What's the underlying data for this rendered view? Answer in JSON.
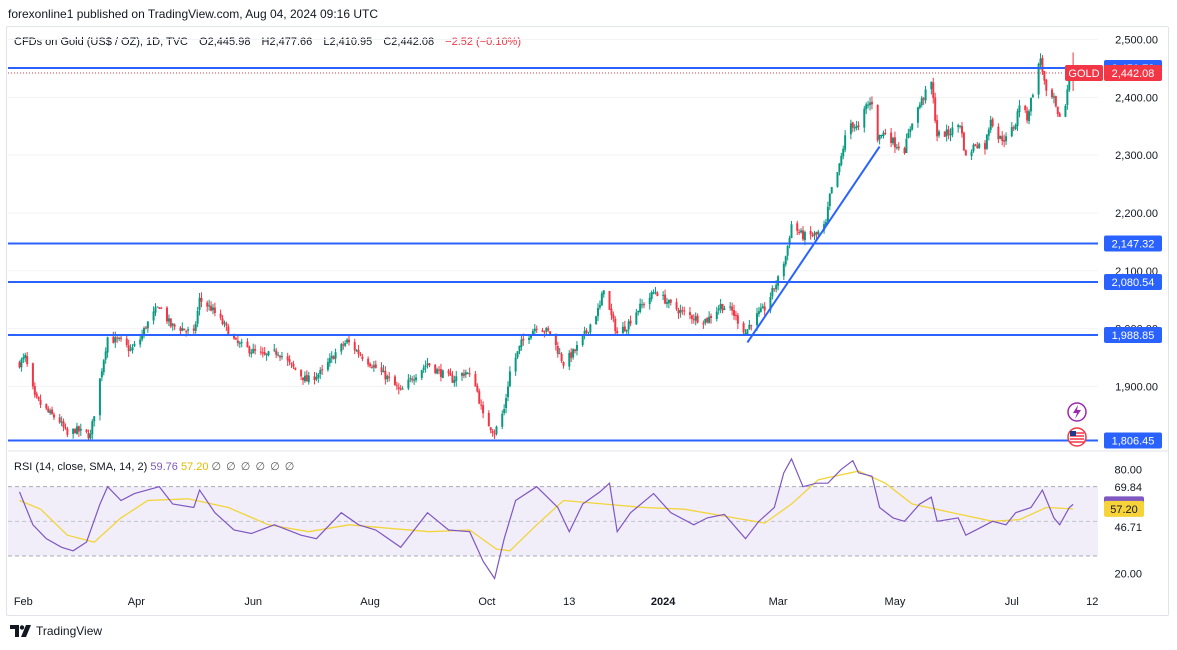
{
  "header": {
    "publisher": "forexonline1 published on TradingView.com, Aug 04, 2024 09:16 UTC",
    "symbol": "CFDs on Gold (US$ / OZ), 1D, TVC",
    "open": "O2,445.98",
    "high": "H2,477.66",
    "low": "L2,410.95",
    "close": "C2,442.08",
    "change": "−2.52 (−0.10%)"
  },
  "rsi_header": {
    "label": "RSI (14, close, SMA, 14, 2)",
    "rsi_value": "59.76",
    "sma_value": "57.20",
    "nulls": "∅ ∅ ∅ ∅ ∅ ∅"
  },
  "footer": {
    "brand": "TradingView"
  },
  "colors": {
    "up": "#089981",
    "down": "#f23645",
    "level": "#2962ff",
    "rsi_line": "#7e57c2",
    "rsi_sma": "#f2d43a",
    "rsi_band": "#ede7f6"
  },
  "chart_data": [
    {
      "type": "candlestick",
      "title": "CFDs on Gold (US$ / OZ), 1D, TVC",
      "ylim": [
        1790,
        2520
      ],
      "y_ticks": [
        "2,500.00",
        "2,400.00",
        "2,300.00",
        "2,200.00",
        "2,100.00",
        "2,000.00",
        "1,900.00"
      ],
      "x_ticks": [
        "Feb",
        "Apr",
        "Jun",
        "Aug",
        "Oct",
        "13",
        "2024",
        "Mar",
        "May",
        "Jul",
        "12"
      ],
      "close_path": [
        [
          "2023-01-30",
          1940
        ],
        [
          "2023-02-02",
          1950
        ],
        [
          "2023-02-07",
          1880
        ],
        [
          "2023-02-14",
          1855
        ],
        [
          "2023-02-20",
          1840
        ],
        [
          "2023-02-24",
          1815
        ],
        [
          "2023-02-28",
          1825
        ],
        [
          "2023-03-08",
          1815
        ],
        [
          "2023-03-13",
          1912
        ],
        [
          "2023-03-17",
          1985
        ],
        [
          "2023-03-20",
          1980
        ],
        [
          "2023-03-24",
          1978
        ],
        [
          "2023-03-29",
          1962
        ],
        [
          "2023-04-03",
          1982
        ],
        [
          "2023-04-06",
          2005
        ],
        [
          "2023-04-13",
          2040
        ],
        [
          "2023-04-19",
          2005
        ],
        [
          "2023-04-25",
          2000
        ],
        [
          "2023-05-01",
          1990
        ],
        [
          "2023-05-04",
          2050
        ],
        [
          "2023-05-10",
          2035
        ],
        [
          "2023-05-17",
          2005
        ],
        [
          "2023-05-23",
          1975
        ],
        [
          "2023-05-31",
          1962
        ],
        [
          "2023-06-07",
          1952
        ],
        [
          "2023-06-14",
          1960
        ],
        [
          "2023-06-21",
          1935
        ],
        [
          "2023-06-29",
          1910
        ],
        [
          "2023-07-07",
          1925
        ],
        [
          "2023-07-14",
          1958
        ],
        [
          "2023-07-20",
          1978
        ],
        [
          "2023-07-27",
          1955
        ],
        [
          "2023-08-03",
          1935
        ],
        [
          "2023-08-10",
          1915
        ],
        [
          "2023-08-17",
          1890
        ],
        [
          "2023-08-23",
          1915
        ],
        [
          "2023-08-31",
          1940
        ],
        [
          "2023-09-06",
          1925
        ],
        [
          "2023-09-13",
          1912
        ],
        [
          "2023-09-20",
          1925
        ],
        [
          "2023-09-25",
          1905
        ],
        [
          "2023-09-29",
          1848
        ],
        [
          "2023-10-05",
          1820
        ],
        [
          "2023-10-10",
          1860
        ],
        [
          "2023-10-13",
          1925
        ],
        [
          "2023-10-19",
          1975
        ],
        [
          "2023-10-27",
          2005
        ],
        [
          "2023-11-03",
          1992
        ],
        [
          "2023-11-10",
          1940
        ],
        [
          "2023-11-16",
          1962
        ],
        [
          "2023-11-22",
          1995
        ],
        [
          "2023-11-29",
          2038
        ],
        [
          "2023-12-01",
          2072
        ],
        [
          "2023-12-04",
          2030
        ],
        [
          "2023-12-08",
          1992
        ],
        [
          "2023-12-13",
          2005
        ],
        [
          "2023-12-18",
          2030
        ],
        [
          "2023-12-28",
          2065
        ],
        [
          "2024-01-05",
          2040
        ],
        [
          "2024-01-11",
          2028
        ],
        [
          "2024-01-18",
          2018
        ],
        [
          "2024-01-24",
          2015
        ],
        [
          "2024-01-31",
          2040
        ],
        [
          "2024-02-06",
          2030
        ],
        [
          "2024-02-13",
          1993
        ],
        [
          "2024-02-16",
          2012
        ],
        [
          "2024-02-23",
          2035
        ],
        [
          "2024-03-01",
          2085
        ],
        [
          "2024-03-05",
          2125
        ],
        [
          "2024-03-08",
          2180
        ],
        [
          "2024-03-14",
          2160
        ],
        [
          "2024-03-21",
          2162
        ],
        [
          "2024-03-26",
          2180
        ],
        [
          "2024-03-28",
          2230
        ],
        [
          "2024-04-02",
          2280
        ],
        [
          "2024-04-05",
          2330
        ],
        [
          "2024-04-08",
          2355
        ],
        [
          "2024-04-12",
          2345
        ],
        [
          "2024-04-16",
          2385
        ],
        [
          "2024-04-19",
          2392
        ],
        [
          "2024-04-22",
          2330
        ],
        [
          "2024-04-26",
          2340
        ],
        [
          "2024-05-01",
          2320
        ],
        [
          "2024-05-06",
          2310
        ],
        [
          "2024-05-10",
          2360
        ],
        [
          "2024-05-15",
          2395
        ],
        [
          "2024-05-20",
          2425
        ],
        [
          "2024-05-23",
          2335
        ],
        [
          "2024-05-29",
          2338
        ],
        [
          "2024-06-04",
          2355
        ],
        [
          "2024-06-07",
          2295
        ],
        [
          "2024-06-12",
          2320
        ],
        [
          "2024-06-17",
          2315
        ],
        [
          "2024-06-20",
          2365
        ],
        [
          "2024-06-24",
          2330
        ],
        [
          "2024-06-28",
          2328
        ],
        [
          "2024-07-03",
          2355
        ],
        [
          "2024-07-05",
          2390
        ],
        [
          "2024-07-09",
          2365
        ],
        [
          "2024-07-12",
          2410
        ],
        [
          "2024-07-16",
          2468
        ],
        [
          "2024-07-19",
          2405
        ],
        [
          "2024-07-23",
          2395
        ],
        [
          "2024-07-25",
          2365
        ],
        [
          "2024-07-29",
          2385
        ],
        [
          "2024-07-31",
          2445
        ],
        [
          "2024-08-02",
          2442
        ]
      ],
      "levels": [
        {
          "price": 2450.73,
          "label": "2,450.73"
        },
        {
          "price": 2147.32,
          "label": "2,147.32"
        },
        {
          "price": 2080.54,
          "label": "2,080.54"
        },
        {
          "price": 1988.85,
          "label": "1,988.85"
        },
        {
          "price": 1806.45,
          "label": "1,806.45"
        }
      ],
      "trendline": [
        [
          "2024-02-14",
          1976
        ],
        [
          "2024-04-23",
          2315
        ]
      ],
      "current_price": {
        "symbol": "GOLD",
        "price": 2442.08,
        "label": "2,442.08"
      }
    },
    {
      "type": "line",
      "title": "RSI (14, close, SMA, 14, 2)",
      "ylim": [
        15,
        90
      ],
      "y_ticks": [
        "80.00",
        "20.00"
      ],
      "upper_band": 70,
      "lower_band": 30,
      "middle": 50,
      "series": [
        {
          "name": "RSI",
          "points": [
            [
              "2023-01-30",
              67
            ],
            [
              "2023-02-06",
              48
            ],
            [
              "2023-02-13",
              40
            ],
            [
              "2023-02-21",
              35
            ],
            [
              "2023-02-27",
              33
            ],
            [
              "2023-03-06",
              38
            ],
            [
              "2023-03-13",
              60
            ],
            [
              "2023-03-17",
              70
            ],
            [
              "2023-03-24",
              62
            ],
            [
              "2023-03-31",
              66
            ],
            [
              "2023-04-13",
              70
            ],
            [
              "2023-04-20",
              60
            ],
            [
              "2023-05-01",
              58
            ],
            [
              "2023-05-04",
              68
            ],
            [
              "2023-05-12",
              55
            ],
            [
              "2023-05-22",
              45
            ],
            [
              "2023-05-31",
              43
            ],
            [
              "2023-06-12",
              48
            ],
            [
              "2023-06-26",
              42
            ],
            [
              "2023-07-04",
              40
            ],
            [
              "2023-07-17",
              55
            ],
            [
              "2023-07-26",
              48
            ],
            [
              "2023-08-04",
              45
            ],
            [
              "2023-08-17",
              35
            ],
            [
              "2023-08-31",
              55
            ],
            [
              "2023-09-11",
              45
            ],
            [
              "2023-09-22",
              44
            ],
            [
              "2023-09-29",
              27
            ],
            [
              "2023-10-05",
              17
            ],
            [
              "2023-10-10",
              40
            ],
            [
              "2023-10-16",
              62
            ],
            [
              "2023-10-27",
              70
            ],
            [
              "2023-11-07",
              58
            ],
            [
              "2023-11-13",
              44
            ],
            [
              "2023-11-20",
              60
            ],
            [
              "2023-11-29",
              67
            ],
            [
              "2023-12-04",
              72
            ],
            [
              "2023-12-08",
              44
            ],
            [
              "2023-12-15",
              55
            ],
            [
              "2023-12-27",
              66
            ],
            [
              "2024-01-05",
              55
            ],
            [
              "2024-01-17",
              48
            ],
            [
              "2024-01-24",
              52
            ],
            [
              "2024-02-02",
              54
            ],
            [
              "2024-02-13",
              40
            ],
            [
              "2024-02-20",
              50
            ],
            [
              "2024-02-28",
              58
            ],
            [
              "2024-03-04",
              78
            ],
            [
              "2024-03-08",
              86
            ],
            [
              "2024-03-14",
              70
            ],
            [
              "2024-03-21",
              72
            ],
            [
              "2024-03-27",
              72
            ],
            [
              "2024-04-03",
              80
            ],
            [
              "2024-04-09",
              85
            ],
            [
              "2024-04-12",
              78
            ],
            [
              "2024-04-19",
              76
            ],
            [
              "2024-04-23",
              58
            ],
            [
              "2024-04-30",
              52
            ],
            [
              "2024-05-06",
              50
            ],
            [
              "2024-05-14",
              60
            ],
            [
              "2024-05-20",
              64
            ],
            [
              "2024-05-23",
              50
            ],
            [
              "2024-06-03",
              52
            ],
            [
              "2024-06-07",
              42
            ],
            [
              "2024-06-14",
              46
            ],
            [
              "2024-06-21",
              50
            ],
            [
              "2024-06-28",
              48
            ],
            [
              "2024-07-03",
              55
            ],
            [
              "2024-07-11",
              58
            ],
            [
              "2024-07-17",
              68
            ],
            [
              "2024-07-23",
              52
            ],
            [
              "2024-07-26",
              48
            ],
            [
              "2024-07-31",
              58
            ],
            [
              "2024-08-02",
              59.76
            ]
          ]
        },
        {
          "name": "SMA",
          "points": [
            [
              "2023-01-30",
              62
            ],
            [
              "2023-02-10",
              57
            ],
            [
              "2023-02-24",
              42
            ],
            [
              "2023-03-10",
              38
            ],
            [
              "2023-03-24",
              52
            ],
            [
              "2023-04-07",
              62
            ],
            [
              "2023-04-28",
              63
            ],
            [
              "2023-05-19",
              58
            ],
            [
              "2023-06-09",
              48
            ],
            [
              "2023-06-30",
              44
            ],
            [
              "2023-07-21",
              48
            ],
            [
              "2023-08-11",
              46
            ],
            [
              "2023-09-01",
              44
            ],
            [
              "2023-09-22",
              45
            ],
            [
              "2023-10-06",
              34
            ],
            [
              "2023-10-13",
              33
            ],
            [
              "2023-10-27",
              48
            ],
            [
              "2023-11-10",
              62
            ],
            [
              "2023-12-01",
              60
            ],
            [
              "2023-12-22",
              58
            ],
            [
              "2024-01-12",
              57
            ],
            [
              "2024-02-02",
              53
            ],
            [
              "2024-02-23",
              49
            ],
            [
              "2024-03-08",
              60
            ],
            [
              "2024-03-22",
              74
            ],
            [
              "2024-04-12",
              79
            ],
            [
              "2024-04-26",
              72
            ],
            [
              "2024-05-10",
              60
            ],
            [
              "2024-05-31",
              55
            ],
            [
              "2024-06-21",
              50
            ],
            [
              "2024-07-05",
              51
            ],
            [
              "2024-07-19",
              58
            ],
            [
              "2024-08-02",
              57.2
            ]
          ]
        }
      ],
      "right_labels": [
        "69.84",
        "59.76",
        "57.20",
        "46.71"
      ]
    }
  ]
}
